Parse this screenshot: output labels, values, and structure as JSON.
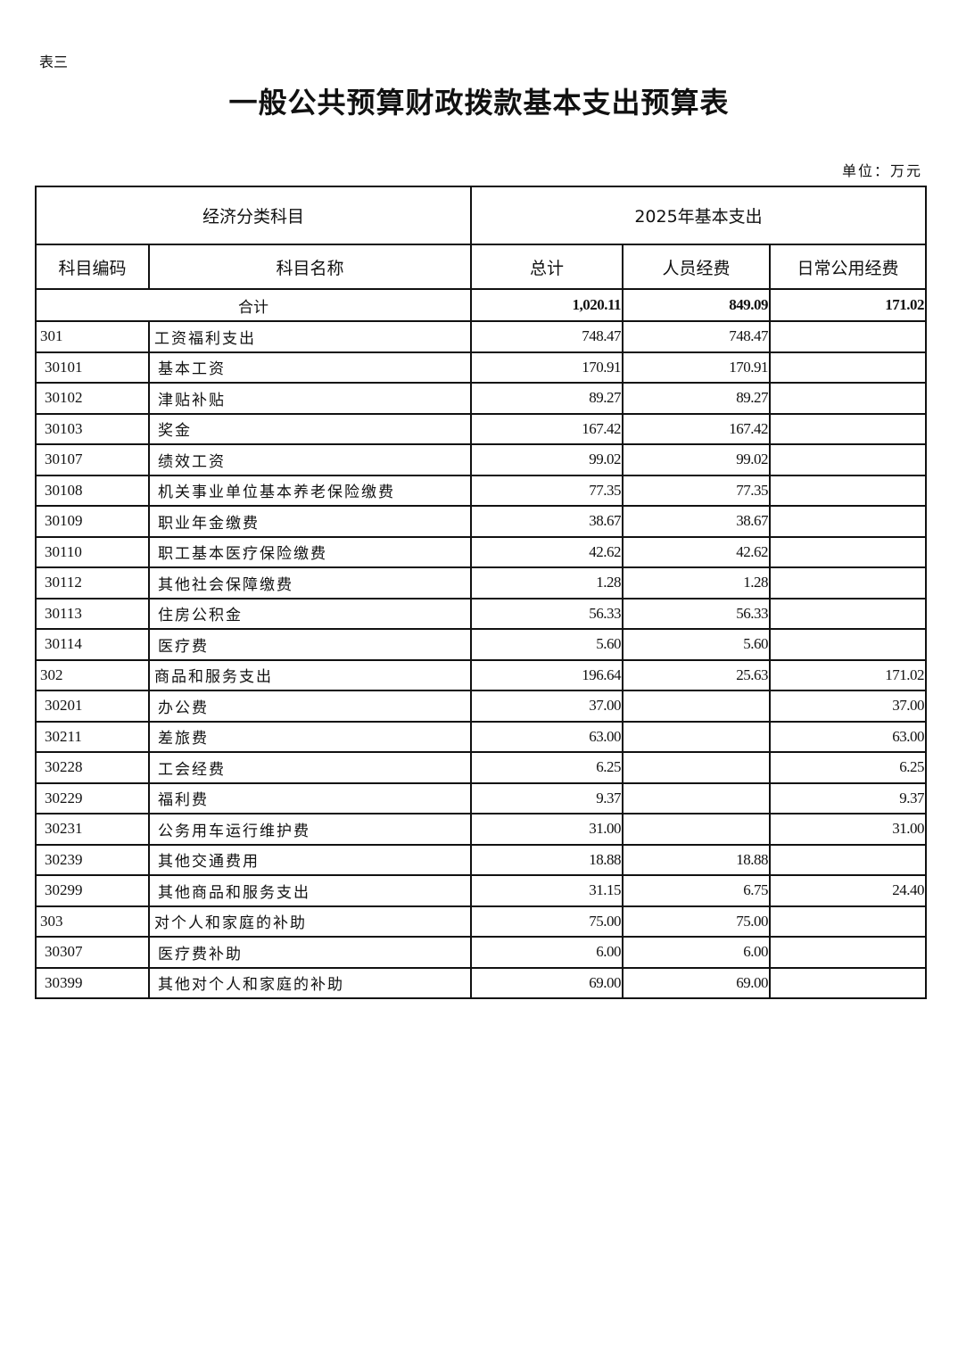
{
  "doc": {
    "table_label": "表三",
    "title": "一般公共预算财政拨款基本支出预算表",
    "unit": "单位：万元"
  },
  "header": {
    "group_left": "经济分类科目",
    "group_right": "2025年基本支出",
    "columns": [
      "科目编码",
      "科目名称",
      "总计",
      "人员经费",
      "日常公用经费"
    ]
  },
  "total": {
    "label": "合计",
    "total": "1,020.11",
    "personnel": "849.09",
    "public": "171.02"
  },
  "rows": [
    {
      "code": "301",
      "name": "工资福利支出",
      "total": "748.47",
      "personnel": "748.47",
      "public": "",
      "level": 1
    },
    {
      "code": "30101",
      "name": "基本工资",
      "total": "170.91",
      "personnel": "170.91",
      "public": "",
      "level": 2
    },
    {
      "code": "30102",
      "name": "津贴补贴",
      "total": "89.27",
      "personnel": "89.27",
      "public": "",
      "level": 2
    },
    {
      "code": "30103",
      "name": "奖金",
      "total": "167.42",
      "personnel": "167.42",
      "public": "",
      "level": 2
    },
    {
      "code": "30107",
      "name": "绩效工资",
      "total": "99.02",
      "personnel": "99.02",
      "public": "",
      "level": 2
    },
    {
      "code": "30108",
      "name": "机关事业单位基本养老保险缴费",
      "total": "77.35",
      "personnel": "77.35",
      "public": "",
      "level": 2
    },
    {
      "code": "30109",
      "name": "职业年金缴费",
      "total": "38.67",
      "personnel": "38.67",
      "public": "",
      "level": 2
    },
    {
      "code": "30110",
      "name": "职工基本医疗保险缴费",
      "total": "42.62",
      "personnel": "42.62",
      "public": "",
      "level": 2
    },
    {
      "code": "30112",
      "name": "其他社会保障缴费",
      "total": "1.28",
      "personnel": "1.28",
      "public": "",
      "level": 2
    },
    {
      "code": "30113",
      "name": "住房公积金",
      "total": "56.33",
      "personnel": "56.33",
      "public": "",
      "level": 2
    },
    {
      "code": "30114",
      "name": "医疗费",
      "total": "5.60",
      "personnel": "5.60",
      "public": "",
      "level": 2
    },
    {
      "code": "302",
      "name": "商品和服务支出",
      "total": "196.64",
      "personnel": "25.63",
      "public": "171.02",
      "level": 1
    },
    {
      "code": "30201",
      "name": "办公费",
      "total": "37.00",
      "personnel": "",
      "public": "37.00",
      "level": 2
    },
    {
      "code": "30211",
      "name": "差旅费",
      "total": "63.00",
      "personnel": "",
      "public": "63.00",
      "level": 2
    },
    {
      "code": "30228",
      "name": "工会经费",
      "total": "6.25",
      "personnel": "",
      "public": "6.25",
      "level": 2
    },
    {
      "code": "30229",
      "name": "福利费",
      "total": "9.37",
      "personnel": "",
      "public": "9.37",
      "level": 2
    },
    {
      "code": "30231",
      "name": "公务用车运行维护费",
      "total": "31.00",
      "personnel": "",
      "public": "31.00",
      "level": 2
    },
    {
      "code": "30239",
      "name": "其他交通费用",
      "total": "18.88",
      "personnel": "18.88",
      "public": "",
      "level": 2
    },
    {
      "code": "30299",
      "name": "其他商品和服务支出",
      "total": "31.15",
      "personnel": "6.75",
      "public": "24.40",
      "level": 2
    },
    {
      "code": "303",
      "name": "对个人和家庭的补助",
      "total": "75.00",
      "personnel": "75.00",
      "public": "",
      "level": 1
    },
    {
      "code": "30307",
      "name": "医疗费补助",
      "total": "6.00",
      "personnel": "6.00",
      "public": "",
      "level": 2
    },
    {
      "code": "30399",
      "name": "其他对个人和家庭的补助",
      "total": "69.00",
      "personnel": "69.00",
      "public": "",
      "level": 2
    }
  ]
}
